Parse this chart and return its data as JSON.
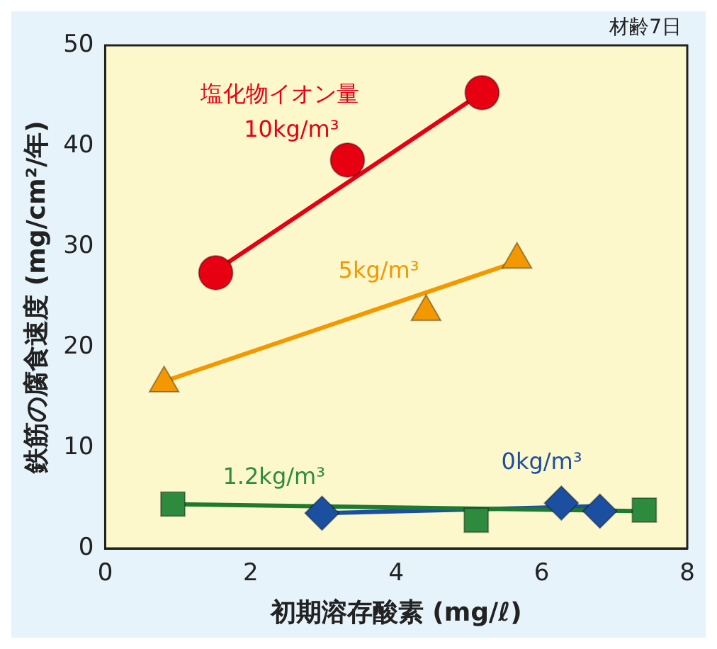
{
  "chart_data": {
    "type": "scatter",
    "xlabel": "初期溶存酸素 (mg/ℓ)",
    "ylabel": "鉄筋の腐食速度 (mg/cm²/年)",
    "annotations": [
      "材齢7日",
      "塩化物イオン量"
    ],
    "xlim": [
      0,
      8
    ],
    "xticks": [
      0,
      2,
      4,
      6,
      8
    ],
    "ylim": [
      0,
      50
    ],
    "yticks": [
      0,
      10,
      20,
      30,
      40,
      50
    ],
    "grid": false,
    "legend": false,
    "series": [
      {
        "name": "10kg/m³",
        "color": "#e60012",
        "marker": "circle",
        "x": [
          1.52,
          3.33,
          5.18
        ],
        "values": [
          27.4,
          38.6,
          45.3
        ]
      },
      {
        "name": "5kg/m³",
        "color": "#f39800",
        "marker": "triangle",
        "x": [
          0.81,
          4.41,
          5.66
        ],
        "values": [
          16.4,
          23.5,
          28.7
        ]
      },
      {
        "name": "1.2kg/m³",
        "color": "#2e8b3e",
        "marker": "square",
        "x": [
          0.93,
          5.1,
          7.41
        ],
        "values": [
          4.4,
          2.8,
          3.8
        ]
      },
      {
        "name": "0kg/m³",
        "color": "#1d4fa0",
        "marker": "diamond",
        "x": [
          2.98,
          6.27,
          6.8
        ],
        "values": [
          3.5,
          4.5,
          3.7
        ]
      },
      {
        "type": "line",
        "color": "#e60012",
        "x": [
          1.52,
          5.18
        ],
        "values": [
          27.6,
          45.3
        ]
      },
      {
        "type": "line",
        "color": "#f39800",
        "x": [
          0.81,
          5.66
        ],
        "values": [
          16.6,
          28.5
        ]
      },
      {
        "type": "line",
        "color": "#1e7a30",
        "x": [
          0.93,
          7.41
        ],
        "values": [
          4.4,
          3.7
        ]
      },
      {
        "type": "line",
        "color": "#1d4fa0",
        "x": [
          2.98,
          6.8
        ],
        "values": [
          3.5,
          4.2
        ]
      }
    ]
  }
}
